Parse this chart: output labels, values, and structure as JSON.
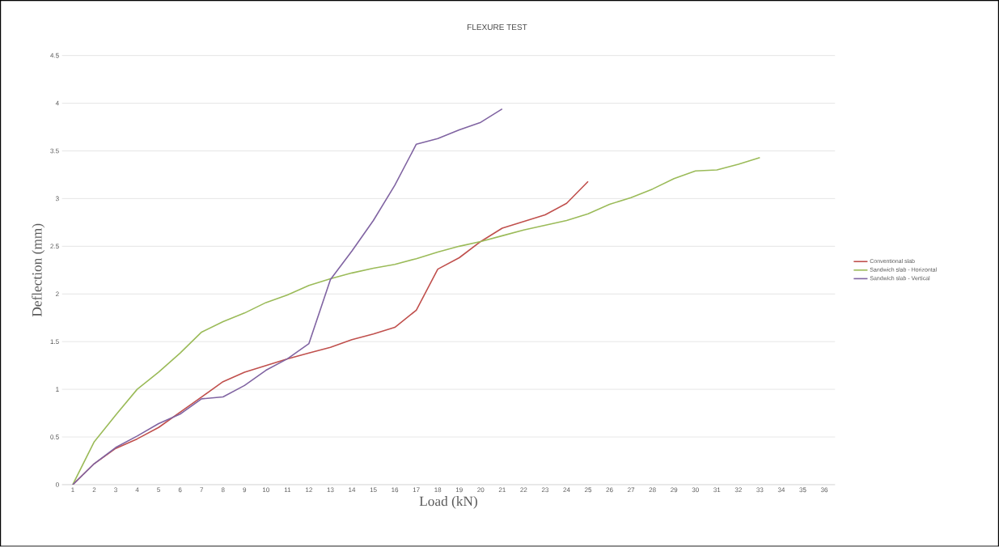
{
  "chart_data": {
    "type": "line",
    "title": "FLEXURE TEST",
    "xlabel": "Load (kN)",
    "ylabel": "Deflection (mm)",
    "categories": [
      "1",
      "2",
      "3",
      "4",
      "5",
      "6",
      "7",
      "8",
      "9",
      "10",
      "11",
      "12",
      "13",
      "14",
      "15",
      "16",
      "17",
      "18",
      "19",
      "20",
      "21",
      "22",
      "23",
      "24",
      "25",
      "26",
      "27",
      "28",
      "29",
      "30",
      "31",
      "32",
      "33",
      "34",
      "35",
      "36"
    ],
    "series": [
      {
        "name": "Conventional slab",
        "color": "#c0504d",
        "values": [
          0,
          0.22,
          0.38,
          0.48,
          0.6,
          0.76,
          0.92,
          1.08,
          1.18,
          1.25,
          1.32,
          1.38,
          1.44,
          1.52,
          1.58,
          1.65,
          1.83,
          2.26,
          2.38,
          2.55,
          2.69,
          2.76,
          2.83,
          2.95,
          3.18,
          null,
          null,
          null,
          null,
          null,
          null,
          null,
          null,
          null,
          null,
          null
        ]
      },
      {
        "name": "Sandwich slab - Horizontal",
        "color": "#9bbb59",
        "values": [
          0,
          0.45,
          0.73,
          1.0,
          1.18,
          1.38,
          1.6,
          1.71,
          1.8,
          1.91,
          1.99,
          2.09,
          2.16,
          2.22,
          2.27,
          2.31,
          2.37,
          2.44,
          2.5,
          2.55,
          2.61,
          2.67,
          2.72,
          2.77,
          2.84,
          2.94,
          3.01,
          3.1,
          3.21,
          3.29,
          3.3,
          3.36,
          3.43,
          null,
          null,
          null
        ]
      },
      {
        "name": "Sandwich slab - Vertical",
        "color": "#8064a2",
        "values": [
          0,
          0.22,
          0.39,
          0.51,
          0.64,
          0.74,
          0.9,
          0.92,
          1.04,
          1.2,
          1.32,
          1.48,
          2.15,
          2.45,
          2.77,
          3.14,
          3.57,
          3.63,
          3.72,
          3.8,
          3.94,
          null,
          null,
          null,
          null,
          null,
          null,
          null,
          null,
          null,
          null,
          null,
          null,
          null,
          null,
          null
        ]
      }
    ],
    "ylim": [
      0,
      4.5
    ],
    "yticks": [
      0,
      0.5,
      1,
      1.5,
      2,
      2.5,
      3,
      3.5,
      4,
      4.5
    ],
    "grid": "y",
    "legend": "right",
    "marker": "none",
    "line_style": "solid"
  }
}
